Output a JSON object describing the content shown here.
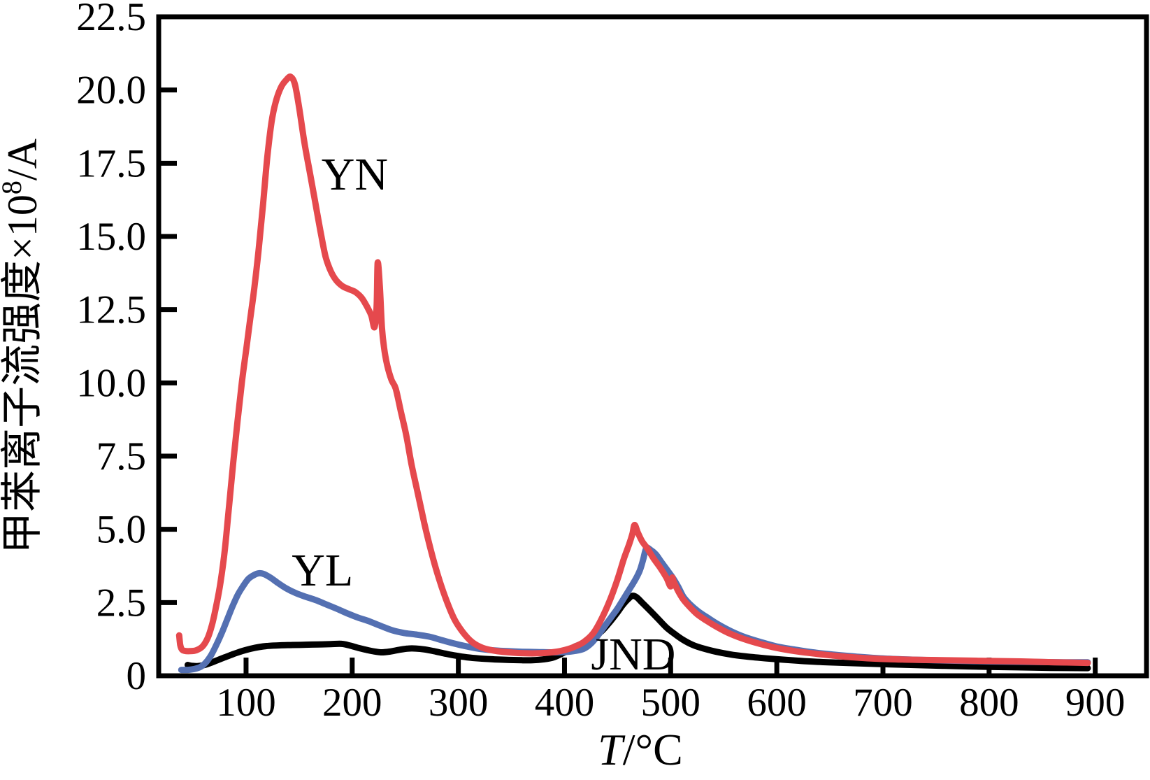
{
  "chart_data": {
    "type": "line",
    "title": "",
    "xlabel": "T/°C",
    "xlabel_parts": {
      "variable": "T",
      "separator": "/",
      "unit": "°C"
    },
    "ylabel": "甲苯离子流强度×10⁸/A",
    "ylabel_parts": {
      "pre": "甲苯离子流强度×10",
      "sup": "8",
      "post": "/A"
    },
    "grid": false,
    "legend": "inline-curve-labels",
    "background_color": "#ffffff",
    "frame_color": "#000000",
    "x_axis": {
      "min": 17.7,
      "max": 948.3,
      "tick_values": [
        100,
        200,
        300,
        400,
        500,
        600,
        700,
        800,
        900
      ],
      "tick_labels": [
        "100",
        "200",
        "300",
        "400",
        "500",
        "600",
        "700",
        "800",
        "900"
      ]
    },
    "y_axis": {
      "min": 0,
      "max": 22.5,
      "tick_values": [
        0,
        2.5,
        5.0,
        7.5,
        10.0,
        12.5,
        15.0,
        17.5,
        20.0,
        22.5
      ],
      "tick_labels": [
        "0",
        "2.5",
        "5.0",
        "7.5",
        "10.0",
        "12.5",
        "15.0",
        "17.5",
        "20.0",
        "22.5"
      ],
      "inner_tick_values": [
        2.5,
        5.0,
        7.5,
        10.0,
        12.5,
        15.0,
        17.5,
        20.0
      ]
    },
    "annotations": [
      {
        "text": "YN",
        "t": 171,
        "v": 16.6
      },
      {
        "text": "YL",
        "t": 143,
        "v": 3.08
      },
      {
        "text": "JND",
        "t": 425,
        "v": 0.21
      }
    ],
    "series": [
      {
        "name": "JND",
        "color": "#000000",
        "peak_summary": {
          "peak1": {
            "t": 180,
            "v": 1.08
          },
          "peak2": {
            "t": 464,
            "v": 2.73
          }
        },
        "points": [
          [
            45,
            0.37
          ],
          [
            49,
            0.34
          ],
          [
            54,
            0.33
          ],
          [
            60,
            0.36
          ],
          [
            66,
            0.43
          ],
          [
            73,
            0.53
          ],
          [
            80,
            0.63
          ],
          [
            88,
            0.74
          ],
          [
            96,
            0.84
          ],
          [
            104,
            0.92
          ],
          [
            112,
            0.98
          ],
          [
            121,
            1.02
          ],
          [
            132,
            1.04
          ],
          [
            144,
            1.05
          ],
          [
            156,
            1.06
          ],
          [
            168,
            1.07
          ],
          [
            180,
            1.08
          ],
          [
            190,
            1.09
          ],
          [
            198,
            1.03
          ],
          [
            206,
            0.95
          ],
          [
            214,
            0.88
          ],
          [
            221,
            0.83
          ],
          [
            228,
            0.8
          ],
          [
            236,
            0.83
          ],
          [
            245,
            0.89
          ],
          [
            253,
            0.93
          ],
          [
            260,
            0.93
          ],
          [
            268,
            0.9
          ],
          [
            277,
            0.84
          ],
          [
            287,
            0.76
          ],
          [
            297,
            0.69
          ],
          [
            308,
            0.63
          ],
          [
            320,
            0.59
          ],
          [
            334,
            0.56
          ],
          [
            348,
            0.54
          ],
          [
            360,
            0.53
          ],
          [
            370,
            0.53
          ],
          [
            380,
            0.56
          ],
          [
            390,
            0.63
          ],
          [
            400,
            0.8
          ],
          [
            410,
            1.0
          ],
          [
            420,
            1.15
          ],
          [
            428,
            1.32
          ],
          [
            435,
            1.52
          ],
          [
            442,
            1.8
          ],
          [
            449,
            2.12
          ],
          [
            455,
            2.42
          ],
          [
            460,
            2.62
          ],
          [
            464,
            2.73
          ],
          [
            468,
            2.68
          ],
          [
            473,
            2.5
          ],
          [
            480,
            2.25
          ],
          [
            488,
            1.95
          ],
          [
            496,
            1.65
          ],
          [
            504,
            1.42
          ],
          [
            512,
            1.22
          ],
          [
            521,
            1.05
          ],
          [
            531,
            0.93
          ],
          [
            543,
            0.82
          ],
          [
            556,
            0.73
          ],
          [
            571,
            0.66
          ],
          [
            588,
            0.6
          ],
          [
            606,
            0.55
          ],
          [
            626,
            0.5
          ],
          [
            648,
            0.46
          ],
          [
            672,
            0.43
          ],
          [
            698,
            0.4
          ],
          [
            726,
            0.37
          ],
          [
            758,
            0.34
          ],
          [
            792,
            0.31
          ],
          [
            826,
            0.29
          ],
          [
            858,
            0.27
          ],
          [
            893,
            0.26
          ]
        ]
      },
      {
        "name": "YL",
        "color": "#5470b2",
        "peak_summary": {
          "peak1": {
            "t": 112,
            "v": 3.5
          },
          "peak2": {
            "t": 477,
            "v": 4.35
          }
        },
        "points": [
          [
            39,
            0.2
          ],
          [
            45,
            0.2
          ],
          [
            51,
            0.23
          ],
          [
            57,
            0.3
          ],
          [
            62,
            0.45
          ],
          [
            67,
            0.7
          ],
          [
            72,
            1.05
          ],
          [
            77,
            1.45
          ],
          [
            82,
            1.9
          ],
          [
            87,
            2.35
          ],
          [
            92,
            2.75
          ],
          [
            97,
            3.05
          ],
          [
            102,
            3.3
          ],
          [
            107,
            3.43
          ],
          [
            112,
            3.5
          ],
          [
            117,
            3.47
          ],
          [
            123,
            3.35
          ],
          [
            130,
            3.17
          ],
          [
            138,
            2.98
          ],
          [
            147,
            2.82
          ],
          [
            156,
            2.7
          ],
          [
            166,
            2.58
          ],
          [
            176,
            2.43
          ],
          [
            186,
            2.28
          ],
          [
            196,
            2.12
          ],
          [
            206,
            1.98
          ],
          [
            216,
            1.86
          ],
          [
            227,
            1.7
          ],
          [
            238,
            1.55
          ],
          [
            249,
            1.46
          ],
          [
            260,
            1.41
          ],
          [
            272,
            1.34
          ],
          [
            284,
            1.22
          ],
          [
            296,
            1.1
          ],
          [
            308,
            1.0
          ],
          [
            320,
            0.92
          ],
          [
            333,
            0.87
          ],
          [
            346,
            0.84
          ],
          [
            360,
            0.82
          ],
          [
            374,
            0.81
          ],
          [
            388,
            0.8
          ],
          [
            400,
            0.81
          ],
          [
            410,
            0.85
          ],
          [
            418,
            0.92
          ],
          [
            425,
            1.1
          ],
          [
            432,
            1.4
          ],
          [
            438,
            1.7
          ],
          [
            444,
            2.0
          ],
          [
            450,
            2.3
          ],
          [
            456,
            2.65
          ],
          [
            462,
            3.0
          ],
          [
            467,
            3.3
          ],
          [
            471,
            3.6
          ],
          [
            474,
            3.95
          ],
          [
            477,
            4.35
          ],
          [
            481,
            4.3
          ],
          [
            486,
            4.15
          ],
          [
            491,
            3.9
          ],
          [
            497,
            3.6
          ],
          [
            502,
            3.35
          ],
          [
            507,
            3.05
          ],
          [
            512,
            2.7
          ],
          [
            518,
            2.45
          ],
          [
            526,
            2.2
          ],
          [
            535,
            1.98
          ],
          [
            545,
            1.75
          ],
          [
            557,
            1.52
          ],
          [
            570,
            1.32
          ],
          [
            585,
            1.15
          ],
          [
            600,
            1.0
          ],
          [
            616,
            0.9
          ],
          [
            634,
            0.8
          ],
          [
            654,
            0.72
          ],
          [
            676,
            0.65
          ],
          [
            700,
            0.59
          ],
          [
            728,
            0.55
          ],
          [
            760,
            0.52
          ],
          [
            800,
            0.49
          ],
          [
            840,
            0.47
          ],
          [
            870,
            0.46
          ],
          [
            893,
            0.46
          ]
        ]
      },
      {
        "name": "YN",
        "color": "#e5494d",
        "peak_summary": {
          "peak1": {
            "t": 142,
            "v": 20.45
          },
          "spike": {
            "t": 224,
            "v": 14.1
          },
          "peak2": {
            "t": 466,
            "v": 5.15
          }
        },
        "points": [
          [
            37,
            1.38
          ],
          [
            38,
            1.05
          ],
          [
            39.5,
            0.9
          ],
          [
            42,
            0.85
          ],
          [
            47,
            0.84
          ],
          [
            53,
            0.87
          ],
          [
            59,
            1.0
          ],
          [
            64,
            1.3
          ],
          [
            68,
            1.75
          ],
          [
            72,
            2.4
          ],
          [
            76,
            3.2
          ],
          [
            80,
            4.3
          ],
          [
            84,
            5.8
          ],
          [
            88,
            7.3
          ],
          [
            92,
            8.7
          ],
          [
            96,
            10.0
          ],
          [
            100,
            11.1
          ],
          [
            104,
            12.2
          ],
          [
            108,
            13.3
          ],
          [
            112,
            14.6
          ],
          [
            116,
            16.1
          ],
          [
            120,
            17.7
          ],
          [
            124,
            18.9
          ],
          [
            128,
            19.6
          ],
          [
            133,
            20.1
          ],
          [
            138,
            20.35
          ],
          [
            142,
            20.45
          ],
          [
            146,
            20.2
          ],
          [
            150,
            19.4
          ],
          [
            155,
            18.2
          ],
          [
            160,
            17.2
          ],
          [
            165,
            16.2
          ],
          [
            170,
            15.2
          ],
          [
            175,
            14.3
          ],
          [
            180,
            13.8
          ],
          [
            185,
            13.5
          ],
          [
            191,
            13.3
          ],
          [
            197,
            13.2
          ],
          [
            203,
            13.1
          ],
          [
            209,
            12.9
          ],
          [
            214,
            12.6
          ],
          [
            218,
            12.3
          ],
          [
            221,
            11.9
          ],
          [
            223,
            12.6
          ],
          [
            224,
            14.1
          ],
          [
            226,
            13.3
          ],
          [
            228,
            11.9
          ],
          [
            230,
            11.2
          ],
          [
            233,
            10.6
          ],
          [
            237,
            10.1
          ],
          [
            241,
            9.8
          ],
          [
            246,
            9.0
          ],
          [
            251,
            8.2
          ],
          [
            256,
            7.2
          ],
          [
            262,
            6.2
          ],
          [
            268,
            5.2
          ],
          [
            274,
            4.3
          ],
          [
            281,
            3.4
          ],
          [
            288,
            2.65
          ],
          [
            296,
            1.95
          ],
          [
            304,
            1.5
          ],
          [
            313,
            1.15
          ],
          [
            323,
            0.95
          ],
          [
            335,
            0.85
          ],
          [
            348,
            0.8
          ],
          [
            362,
            0.77
          ],
          [
            376,
            0.77
          ],
          [
            388,
            0.8
          ],
          [
            398,
            0.86
          ],
          [
            408,
            0.97
          ],
          [
            418,
            1.15
          ],
          [
            427,
            1.45
          ],
          [
            435,
            1.95
          ],
          [
            443,
            2.6
          ],
          [
            450,
            3.3
          ],
          [
            456,
            4.0
          ],
          [
            461,
            4.5
          ],
          [
            464,
            4.85
          ],
          [
            466,
            5.15
          ],
          [
            469,
            4.9
          ],
          [
            473,
            4.6
          ],
          [
            478,
            4.35
          ],
          [
            484,
            4.0
          ],
          [
            490,
            3.7
          ],
          [
            496,
            3.35
          ],
          [
            500,
            3.05
          ],
          [
            501.5,
            3.35
          ],
          [
            503,
            3.2
          ],
          [
            507,
            2.9
          ],
          [
            512,
            2.6
          ],
          [
            518,
            2.35
          ],
          [
            525,
            2.1
          ],
          [
            533,
            1.9
          ],
          [
            543,
            1.68
          ],
          [
            554,
            1.47
          ],
          [
            567,
            1.28
          ],
          [
            581,
            1.12
          ],
          [
            596,
            0.98
          ],
          [
            612,
            0.87
          ],
          [
            630,
            0.78
          ],
          [
            650,
            0.7
          ],
          [
            672,
            0.63
          ],
          [
            696,
            0.58
          ],
          [
            724,
            0.55
          ],
          [
            756,
            0.53
          ],
          [
            792,
            0.51
          ],
          [
            830,
            0.49
          ],
          [
            862,
            0.46
          ],
          [
            893,
            0.44
          ]
        ]
      }
    ]
  }
}
